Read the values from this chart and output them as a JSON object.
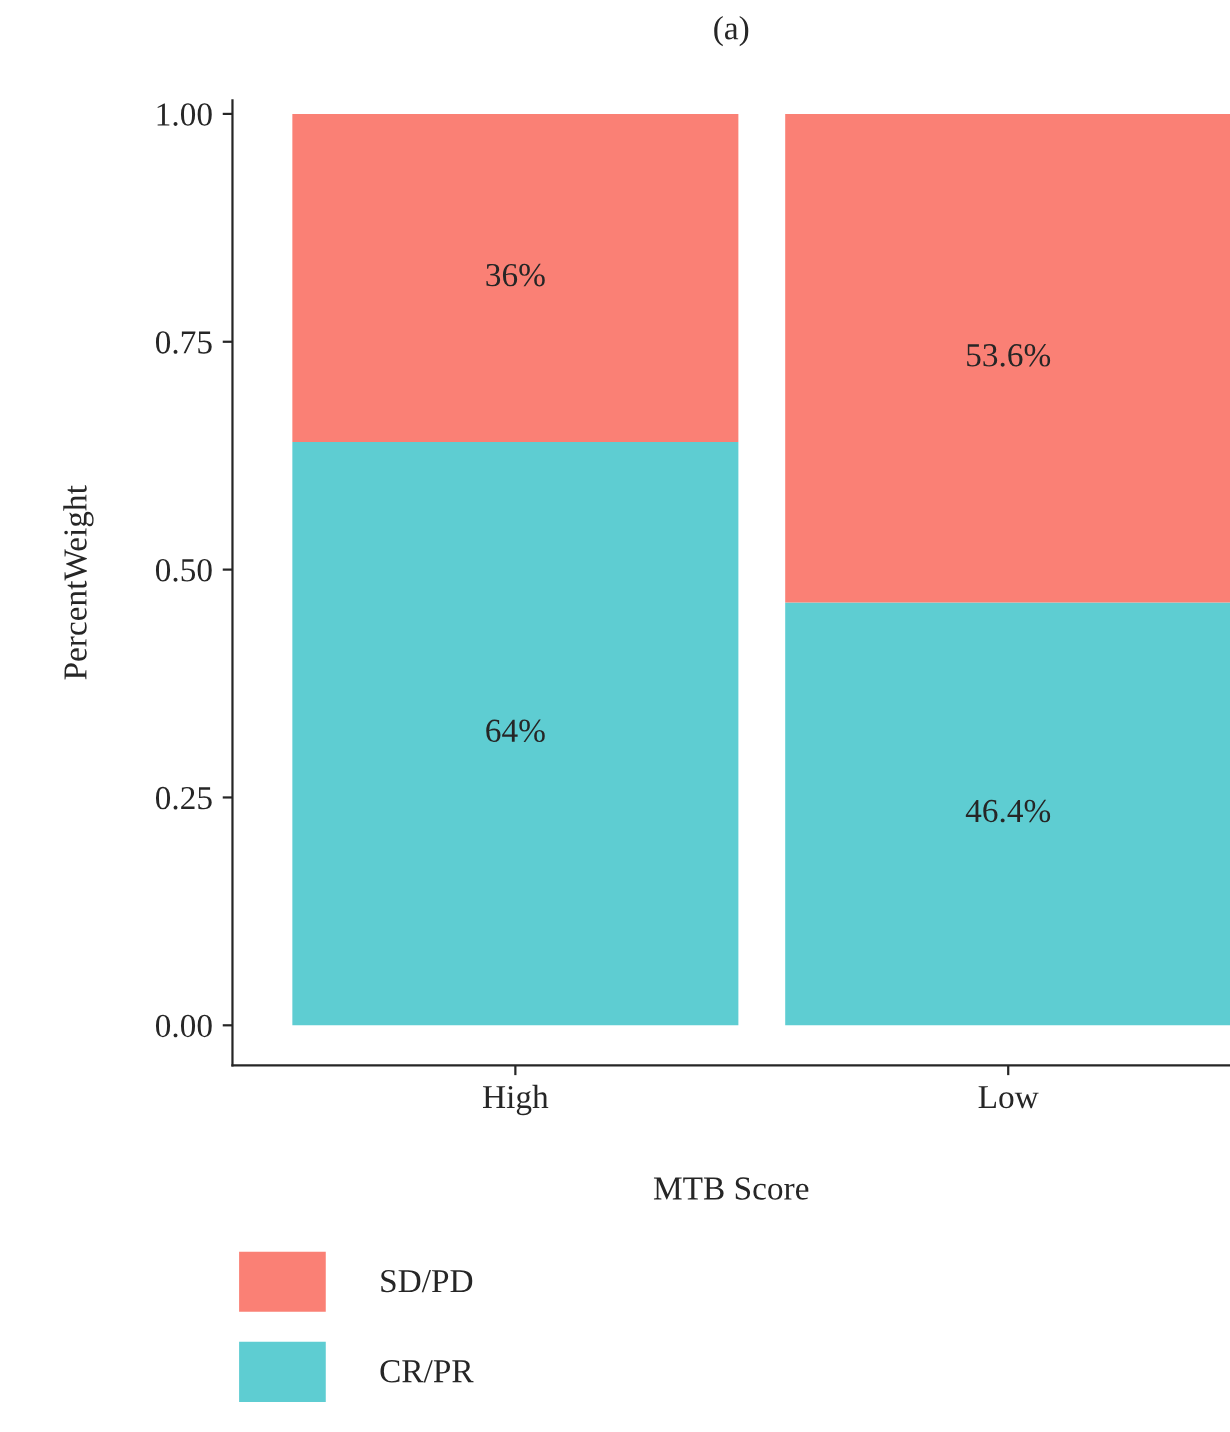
{
  "chart_data": {
    "type": "bar",
    "title": "(a)",
    "xlabel": "MTB Score",
    "ylabel": "PercentWeight",
    "categories": [
      "High",
      "Low"
    ],
    "stacked": true,
    "series": [
      {
        "name": "CR/PR",
        "color": "#5ecdd2",
        "values": [
          0.64,
          0.464
        ],
        "value_labels": [
          "64%",
          "46.4%"
        ]
      },
      {
        "name": "SD/PD",
        "color": "#fa8075",
        "values": [
          0.36,
          0.536
        ],
        "value_labels": [
          "36%",
          "53.6%"
        ]
      }
    ],
    "ylim": [
      -0.044,
      1.015
    ],
    "yticks": [
      {
        "value": 0,
        "label": "0.00"
      },
      {
        "value": 0.25,
        "label": "0.25"
      },
      {
        "value": 0.5,
        "label": "0.50"
      },
      {
        "value": 0.75,
        "label": "0.75"
      },
      {
        "value": 1,
        "label": "1.00"
      }
    ],
    "grid": false,
    "legend": "bottom left"
  }
}
